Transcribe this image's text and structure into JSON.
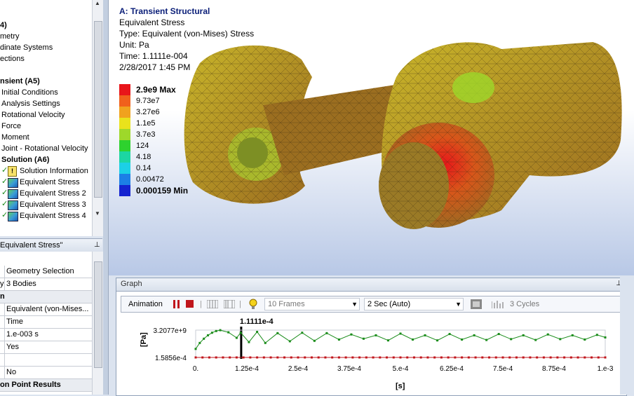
{
  "tree": {
    "items": [
      {
        "label": "4)",
        "bold": true
      },
      {
        "label": "metry"
      },
      {
        "label": "dinate Systems"
      },
      {
        "label": "ections"
      },
      {
        "label": ""
      },
      {
        "label": "nsient (A5)",
        "bold": true
      },
      {
        "label": "Initial Conditions"
      },
      {
        "label": "Analysis Settings"
      },
      {
        "label": "Rotational Velocity"
      },
      {
        "label": "Force"
      },
      {
        "label": "Moment"
      },
      {
        "label": "Joint - Rotational Velocity"
      },
      {
        "label": "Solution (A6)",
        "bold": true
      },
      {
        "label": "Solution Information"
      },
      {
        "label": "Equivalent Stress"
      },
      {
        "label": "Equivalent Stress 2"
      },
      {
        "label": "Equivalent Stress 3"
      },
      {
        "label": "Equivalent Stress 4"
      }
    ]
  },
  "details": {
    "header": "Equivalent Stress\"",
    "rows": [
      {
        "a": "",
        "b": "Geometry Selection"
      },
      {
        "a": "y",
        "b": "3 Bodies"
      },
      {
        "a": "n",
        "b": "",
        "section": true
      },
      {
        "a": "",
        "b": "Equivalent (von-Mises..."
      },
      {
        "a": "",
        "b": "Time"
      },
      {
        "a": "",
        "b": "1.e-003 s"
      },
      {
        "a": "",
        "b": "Yes"
      },
      {
        "a": "",
        "b": ""
      },
      {
        "a": "",
        "b": "No"
      },
      {
        "a": "on Point Results",
        "b": "",
        "section": true
      }
    ]
  },
  "viewport": {
    "title": "A: Transient Structural",
    "lines": [
      "Equivalent Stress",
      "Type: Equivalent (von-Mises) Stress",
      "Unit: Pa",
      "Time: 1.1111e-004",
      "2/28/2017 1:45 PM"
    ],
    "legend": [
      {
        "label": "2.9e9 Max",
        "color": "#e8151a",
        "bold": true
      },
      {
        "label": "9.73e7",
        "color": "#f0601c"
      },
      {
        "label": "3.27e6",
        "color": "#f0a21e"
      },
      {
        "label": "1.1e5",
        "color": "#e9e21c"
      },
      {
        "label": "3.7e3",
        "color": "#9ed82a"
      },
      {
        "label": "124",
        "color": "#2ed22e"
      },
      {
        "label": "4.18",
        "color": "#1cd6a2"
      },
      {
        "label": "0.14",
        "color": "#1cd0e6"
      },
      {
        "label": "0.00472",
        "color": "#1c7fe6"
      },
      {
        "label": "0.000159 Min",
        "color": "#1423d0",
        "bold": true
      }
    ]
  },
  "graph": {
    "title": "Graph",
    "toolbar": {
      "animation_label": "Animation",
      "frames": "10 Frames",
      "duration": "2 Sec (Auto)",
      "cycles": "3 Cycles"
    },
    "time_marker_label": "1.1111e-4",
    "ylabel": "[Pa]",
    "xlabel": "[s]",
    "ymax_label": "3.2077e+9",
    "ymin_label": "1.5856e-4",
    "xticks": [
      "0.",
      "1.25e-4",
      "2.5e-4",
      "3.75e-4",
      "5.e-4",
      "6.25e-4",
      "7.5e-4",
      "8.75e-4",
      "1.e-3"
    ]
  },
  "chart_data": {
    "type": "line",
    "xlabel": "[s]",
    "ylabel": "[Pa]",
    "xlim": [
      0,
      0.001
    ],
    "series": [
      {
        "name": "Max",
        "color": "#1a8c1a",
        "x": [
          0,
          1e-05,
          2e-05,
          3e-05,
          4e-05,
          5e-05,
          6e-05,
          8e-05,
          0.0001,
          0.00011,
          0.00013,
          0.00015,
          0.00017,
          0.0002,
          0.00023,
          0.00026,
          0.00029,
          0.00032,
          0.00035,
          0.00038,
          0.00041,
          0.00044,
          0.00047,
          0.0005,
          0.00053,
          0.00056,
          0.00059,
          0.00062,
          0.00065,
          0.00068,
          0.00071,
          0.00074,
          0.00077,
          0.0008,
          0.00083,
          0.00086,
          0.00089,
          0.00092,
          0.00095,
          0.00098,
          0.001
        ],
        "y": [
          1000000000.0,
          1700000000.0,
          2200000000.0,
          2600000000.0,
          2900000000.0,
          3100000000.0,
          3200000000.0,
          2950000000.0,
          2300000000.0,
          2900000000.0,
          1800000000.0,
          3000000000.0,
          1700000000.0,
          2850000000.0,
          1900000000.0,
          2900000000.0,
          1950000000.0,
          2850000000.0,
          2100000000.0,
          2700000000.0,
          2200000000.0,
          2600000000.0,
          2000000000.0,
          2800000000.0,
          2100000000.0,
          2600000000.0,
          2000000000.0,
          2750000000.0,
          2100000000.0,
          2600000000.0,
          2050000000.0,
          2750000000.0,
          2150000000.0,
          2600000000.0,
          2050000000.0,
          2700000000.0,
          2150000000.0,
          2600000000.0,
          2100000000.0,
          2650000000.0,
          2350000000.0
        ]
      },
      {
        "name": "Min",
        "color": "#c0161c",
        "x": [
          0,
          0.001
        ],
        "y": [
          0.000159,
          0.000159
        ]
      }
    ]
  }
}
